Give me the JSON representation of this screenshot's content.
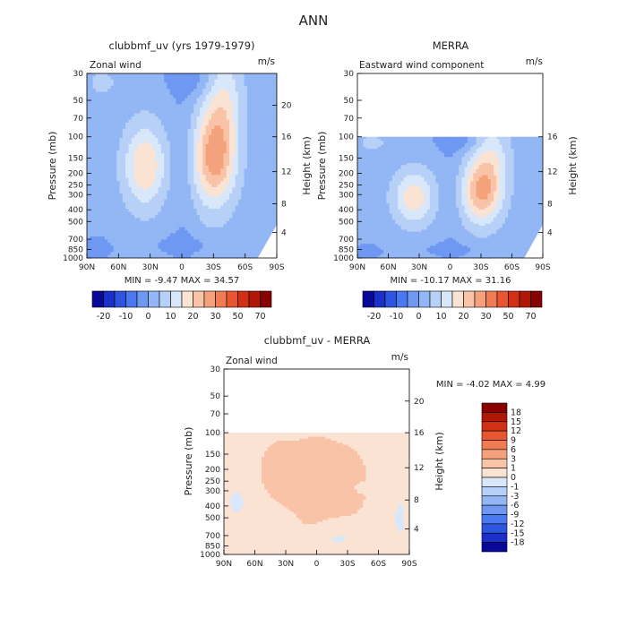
{
  "page_title": "ANN",
  "colors": {
    "neg": [
      "#08089a",
      "#1a30c8",
      "#2e55e0",
      "#4a78f0",
      "#6e98f2",
      "#93b6f5",
      "#b7d0f7",
      "#d8e7fa"
    ],
    "pos": [
      "#fbe3d4",
      "#f8c3a6",
      "#f4a27c",
      "#f07c55",
      "#e8552f",
      "#d23015",
      "#b01806",
      "#880000"
    ]
  },
  "colorbar_top": {
    "labels": [
      "-20",
      "-10",
      "0",
      "10",
      "20",
      "30",
      "50",
      "70"
    ],
    "colors": [
      "#08089a",
      "#1a30c8",
      "#2e55e0",
      "#4a78f0",
      "#6e98f2",
      "#93b6f5",
      "#b7d0f7",
      "#d8e7fa",
      "#fbe3d4",
      "#f8c3a6",
      "#f4a27c",
      "#f07c55",
      "#e8552f",
      "#d23015",
      "#b01806",
      "#880000"
    ]
  },
  "colorbar_diff": {
    "labels": [
      "18",
      "15",
      "12",
      "9",
      "6",
      "3",
      "1",
      "0",
      "-1",
      "-3",
      "-6",
      "-9",
      "-12",
      "-15",
      "-18"
    ],
    "colors": [
      "#880000",
      "#b01806",
      "#d23015",
      "#e8552f",
      "#f07c55",
      "#f4a27c",
      "#f8c3a6",
      "#fbe3d4",
      "#d8e7fa",
      "#b7d0f7",
      "#93b6f5",
      "#6e98f2",
      "#4a78f0",
      "#2e55e0",
      "#1a30c8",
      "#08089a"
    ]
  },
  "chart_data": [
    {
      "type": "heatmap",
      "title": "clubbmf_uv (yrs 1979-1979)",
      "left_label": "Zonal wind",
      "units": "m/s",
      "ylabel": "Pressure (mb)",
      "ylabel_right": "Height (km)",
      "x_ticks": [
        "90N",
        "60N",
        "30N",
        "0",
        "30S",
        "60S",
        "90S"
      ],
      "y_ticks": [
        "30",
        "50",
        "70",
        "100",
        "150",
        "200",
        "250",
        "300",
        "400",
        "500",
        "700",
        "850",
        "1000"
      ],
      "right_ticks": [
        "20",
        "16",
        "12",
        "8",
        "4"
      ],
      "ylim": [
        1000,
        30
      ],
      "data_top_pressure": 30,
      "stats": "MIN = -9.47   MAX = 34.57"
    },
    {
      "type": "heatmap",
      "title": "MERRA",
      "left_label": "Eastward wind component",
      "units": "m/s",
      "ylabel": "Pressure (mb)",
      "ylabel_right": "Height (km)",
      "x_ticks": [
        "90N",
        "60N",
        "30N",
        "0",
        "30S",
        "60S",
        "90S"
      ],
      "y_ticks": [
        "30",
        "50",
        "70",
        "100",
        "150",
        "200",
        "250",
        "300",
        "400",
        "500",
        "700",
        "850",
        "1000"
      ],
      "right_ticks": [
        "16",
        "12",
        "8",
        "4"
      ],
      "ylim": [
        1000,
        30
      ],
      "data_top_pressure": 100,
      "stats": "MIN = -10.17   MAX = 31.16"
    },
    {
      "type": "heatmap",
      "title": "clubbmf_uv - MERRA",
      "left_label": "Zonal wind",
      "units": "m/s",
      "ylabel": "Pressure (mb)",
      "ylabel_right": "Height (km)",
      "x_ticks": [
        "90N",
        "60N",
        "30N",
        "0",
        "30S",
        "60S",
        "90S"
      ],
      "y_ticks": [
        "30",
        "50",
        "70",
        "100",
        "150",
        "200",
        "250",
        "300",
        "400",
        "500",
        "700",
        "850",
        "1000"
      ],
      "right_ticks": [
        "20",
        "16",
        "12",
        "8",
        "4"
      ],
      "ylim": [
        1000,
        30
      ],
      "data_top_pressure": 100,
      "stats": "MIN =   -4.02   MAX =    4.99"
    }
  ]
}
